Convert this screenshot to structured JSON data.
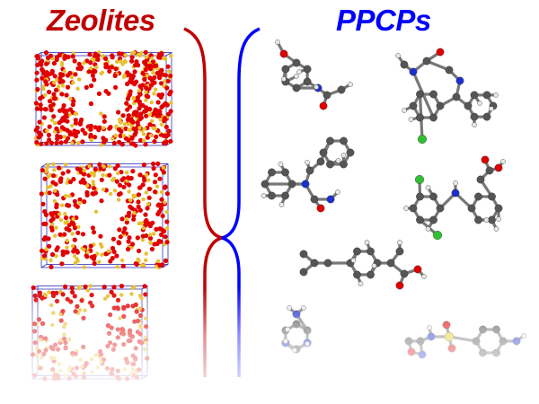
{
  "left_title": "Zeolites",
  "right_title": "PPCPs",
  "colors": {
    "zeolites": "#c00000",
    "ppcps": "#0000ff",
    "oxygen": "#e00000",
    "silicon": "#e8c030",
    "carbon": "#555555",
    "hydrogen": "#e8e8e8",
    "nitrogen": "#1c2fd0",
    "chlorine": "#30c030",
    "sulfur": "#e0d020",
    "cell_edge": "#3030c0"
  }
}
